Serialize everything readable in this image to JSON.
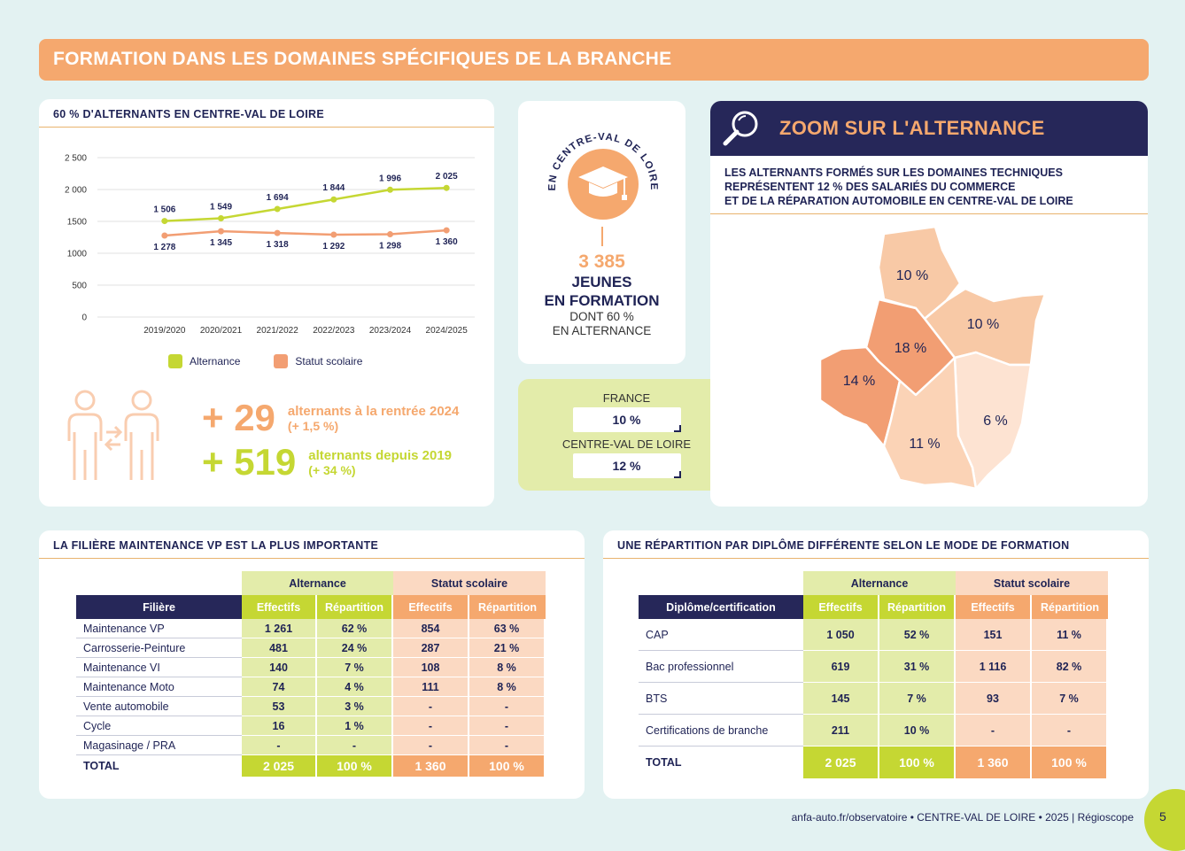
{
  "banner": {
    "title": "FORMATION DANS LES DOMAINES SPÉCIFIQUES DE LA BRANCHE"
  },
  "chart_card": {
    "title": "60 % D'ALTERNANTS EN CENTRE-VAL DE LOIRE",
    "legend": [
      "Alternance",
      "Statut scolaire"
    ],
    "kpi1": {
      "number": "+ 29",
      "line1": "alternants à la rentrée 2024",
      "line2": "(+ 1,5 %)"
    },
    "kpi2": {
      "number": "+ 519",
      "line1": "alternants depuis 2019",
      "line2": "(+ 34 %)"
    }
  },
  "chart_data": {
    "type": "line",
    "categories": [
      "2019/2020",
      "2020/2021",
      "2021/2022",
      "2022/2023",
      "2023/2024",
      "2024/2025"
    ],
    "series": [
      {
        "name": "Alternance",
        "values": [
          1506,
          1549,
          1694,
          1844,
          1996,
          2025
        ],
        "labels": [
          "1 506",
          "1 549",
          "1 694",
          "1 844",
          "1 996",
          "2 025"
        ],
        "color": "#c5d733"
      },
      {
        "name": "Statut scolaire",
        "values": [
          1278,
          1345,
          1318,
          1292,
          1298,
          1360
        ],
        "labels": [
          "1 278",
          "1 345",
          "1 318",
          "1 292",
          "1 298",
          "1 360"
        ],
        "color": "#f29e73"
      }
    ],
    "yticks": [
      "2 500",
      "2 000",
      "1500",
      "1000",
      "500",
      "0"
    ],
    "ylim": [
      0,
      2500
    ],
    "grid": true,
    "legend_position": "bottom"
  },
  "center": {
    "arc_text": "EN CENTRE-VAL DE LOIRE",
    "number": "3 385",
    "line1": "JEUNES",
    "line2": "EN FORMATION",
    "line3": "DONT 60 %",
    "line4": "EN ALTERNANCE"
  },
  "compare": {
    "france_label": "FRANCE",
    "france_value": "10 %",
    "region_label": "CENTRE-VAL DE LOIRE",
    "region_value": "12 %"
  },
  "zoom": {
    "title": "ZOOM SUR L'ALTERNANCE",
    "desc1": "LES ALTERNANTS FORMÉS SUR LES DOMAINES TECHNIQUES",
    "desc2": "REPRÉSENTENT 12 % DES SALARIÉS DU COMMERCE",
    "desc3": "ET DE LA RÉPARATION AUTOMOBILE EN CENTRE-VAL DE LOIRE",
    "map_labels": [
      "10 %",
      "10 %",
      "18 %",
      "14 %",
      "6 %",
      "11 %"
    ]
  },
  "filiere": {
    "title": "LA FILIÈRE MAINTENANCE VP EST LA PLUS IMPORTANTE",
    "group_alt": "Alternance",
    "group_sco": "Statut scolaire",
    "headers": [
      "Filière",
      "Effectifs",
      "Répartition",
      "Effectifs",
      "Répartition"
    ],
    "rows": [
      [
        "Maintenance VP",
        "1 261",
        "62 %",
        "854",
        "63 %"
      ],
      [
        "Carrosserie-Peinture",
        "481",
        "24 %",
        "287",
        "21 %"
      ],
      [
        "Maintenance VI",
        "140",
        "7 %",
        "108",
        "8 %"
      ],
      [
        "Maintenance Moto",
        "74",
        "4 %",
        "111",
        "8 %"
      ],
      [
        "Vente automobile",
        "53",
        "3 %",
        "-",
        "-"
      ],
      [
        "Cycle",
        "16",
        "1 %",
        "-",
        "-"
      ],
      [
        "Magasinage / PRA",
        "-",
        "-",
        "-",
        "-"
      ]
    ],
    "total": [
      "TOTAL",
      "2 025",
      "100 %",
      "1 360",
      "100 %"
    ]
  },
  "diplome": {
    "title": "UNE RÉPARTITION PAR DIPLÔME DIFFÉRENTE SELON LE MODE DE FORMATION",
    "group_alt": "Alternance",
    "group_sco": "Statut scolaire",
    "headers": [
      "Diplôme/certification",
      "Effectifs",
      "Répartition",
      "Effectifs",
      "Répartition"
    ],
    "rows": [
      [
        "CAP",
        "1 050",
        "52 %",
        "151",
        "11 %"
      ],
      [
        "Bac professionnel",
        "619",
        "31 %",
        "1 116",
        "82 %"
      ],
      [
        "BTS",
        "145",
        "7 %",
        "93",
        "7 %"
      ],
      [
        "Certifications de branche",
        "211",
        "10 %",
        "-",
        "-"
      ]
    ],
    "total": [
      "TOTAL",
      "2 025",
      "100 %",
      "1 360",
      "100 %"
    ]
  },
  "footer": {
    "text": "anfa-auto.fr/observatoire  •  CENTRE-VAL DE LOIRE  •  2025 | Régioscope",
    "page": "5"
  }
}
